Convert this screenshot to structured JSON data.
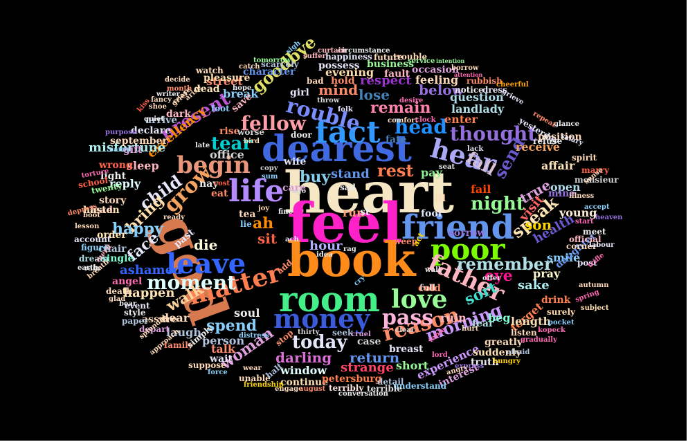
{
  "background": "#000000",
  "words": [
    {
      "text": "heart",
      "color": "#f5e6c4"
    },
    {
      "text": "feel",
      "color": "#ff22c8"
    },
    {
      "text": "book",
      "color": "#ff8c1a"
    },
    {
      "text": "dearest",
      "color": "#4169e1"
    },
    {
      "text": "god",
      "color": "#d77a50"
    },
    {
      "text": "room",
      "color": "#44ee88"
    },
    {
      "text": "friend",
      "color": "#6495ed"
    },
    {
      "text": "poor",
      "color": "#7CFC00"
    },
    {
      "text": "life",
      "color": "#b48cff"
    },
    {
      "text": "fact",
      "color": "#3399ff"
    },
    {
      "text": "leave",
      "color": "#3366ff"
    },
    {
      "text": "money",
      "color": "#3b5bdb"
    },
    {
      "text": "love",
      "color": "#98fb98"
    },
    {
      "text": "matter",
      "color": "#ff7f50"
    },
    {
      "text": "hear",
      "color": "#a9a9f5"
    },
    {
      "text": "father",
      "color": "#ffb6c1"
    },
    {
      "text": "begin",
      "color": "#e9967a"
    },
    {
      "text": "moment",
      "color": "#e0ffff"
    },
    {
      "text": "fellow",
      "color": "#ff9ea8"
    },
    {
      "text": "head",
      "color": "#1e90ff"
    },
    {
      "text": "rouble",
      "color": "#7b8cff"
    },
    {
      "text": "reason",
      "color": "#ff8c69"
    },
    {
      "text": "pass",
      "color": "#ffb3d9"
    },
    {
      "text": "thought",
      "color": "#9370db"
    },
    {
      "text": "night",
      "color": "#98fb98"
    },
    {
      "text": "remember",
      "color": "#b0e0e6"
    },
    {
      "text": "grow",
      "color": "#f4a460"
    },
    {
      "text": "present",
      "color": "#ba55d3"
    },
    {
      "text": "remain",
      "color": "#ff82ab"
    },
    {
      "text": "today",
      "color": "#e6e6fa"
    },
    {
      "text": "speak",
      "color": "#ffe4b5"
    },
    {
      "text": "tear",
      "color": "#00ced1"
    },
    {
      "text": "child",
      "color": "#e6e6fa"
    },
    {
      "text": "goodbye",
      "color": "#e0e066"
    },
    {
      "text": "ah",
      "color": "#ff8c00"
    },
    {
      "text": "sit",
      "color": "#ff6347"
    },
    {
      "text": "die",
      "color": "#ffffe0"
    },
    {
      "text": "send",
      "color": "#6a5acd"
    },
    {
      "text": "walk",
      "color": "#ffd39b"
    },
    {
      "text": "woman",
      "color": "#dda0dd"
    },
    {
      "text": "spend",
      "color": "#87cefa"
    },
    {
      "text": "sort",
      "color": "#40e0d0"
    },
    {
      "text": "eye",
      "color": "#ff1493"
    },
    {
      "text": "fall",
      "color": "#d8bfd8"
    },
    {
      "text": "rest",
      "color": "#ff7f50"
    },
    {
      "text": "buy",
      "color": "#87ceeb"
    },
    {
      "text": "morning",
      "color": "#cc99ff"
    },
    {
      "text": "bring",
      "color": "#ffdead"
    },
    {
      "text": "happy",
      "color": "#87cefa"
    },
    {
      "text": "face",
      "color": "#e6e6fa"
    },
    {
      "text": "happen",
      "color": "#ffe4b5"
    },
    {
      "text": "mind",
      "color": "#ff8c69"
    },
    {
      "text": "lose",
      "color": "#4682b4"
    },
    {
      "text": "below",
      "color": "#9370db"
    },
    {
      "text": "darling",
      "color": "#da70d6"
    },
    {
      "text": "return",
      "color": "#6495ed"
    },
    {
      "text": "person",
      "color": "#b0c4de"
    },
    {
      "text": "sake",
      "color": "#afeeee"
    },
    {
      "text": "forget",
      "color": "#ff7f50"
    },
    {
      "text": "visit",
      "color": "#ff6666"
    },
    {
      "text": "true",
      "color": "#dda0dd"
    },
    {
      "text": "son",
      "color": "#ffd700"
    },
    {
      "text": "pray",
      "color": "#fffacd"
    },
    {
      "text": "health",
      "color": "#6a5acd"
    },
    {
      "text": "enter",
      "color": "#ff7f50"
    },
    {
      "text": "respect",
      "color": "#9932cc"
    },
    {
      "text": "question",
      "color": "#add8e6"
    },
    {
      "text": "landlady",
      "color": "#b0e0e6"
    },
    {
      "text": "receive",
      "color": "#f4a460"
    },
    {
      "text": "excellency",
      "color": "#ff8c00"
    },
    {
      "text": "misfortune",
      "color": "#afeeee"
    },
    {
      "text": "sleep",
      "color": "#ffb6c1"
    },
    {
      "text": "reply",
      "color": "#e0ffff"
    },
    {
      "text": "office",
      "color": "#d3d3d3"
    },
    {
      "text": "care",
      "color": "#dda0dd"
    },
    {
      "text": "stand",
      "color": "#6495ed"
    },
    {
      "text": "pay",
      "color": "#90ee90"
    },
    {
      "text": "hour",
      "color": "#b0b0ff"
    },
    {
      "text": "run",
      "color": "#ffa07a"
    },
    {
      "text": "st",
      "color": "#eeeeee"
    },
    {
      "text": "fool",
      "color": "#e6e6fa"
    },
    {
      "text": "sorrow",
      "color": "#9370db"
    },
    {
      "text": "ill",
      "color": "#ffdab9"
    },
    {
      "text": "fail",
      "color": "#ff4500"
    },
    {
      "text": "open",
      "color": "#add8e6"
    },
    {
      "text": "affair",
      "color": "#ffe4b5"
    },
    {
      "text": "mine",
      "color": "#9370db"
    },
    {
      "text": "young",
      "color": "#ffefd5"
    },
    {
      "text": "smile",
      "color": "#87cefa"
    },
    {
      "text": "drink",
      "color": "#ff7f50"
    },
    {
      "text": "daughter",
      "color": "#6495ed"
    },
    {
      "text": "length",
      "color": "#f5deb3"
    },
    {
      "text": "ruin",
      "color": "#ffb6c1"
    },
    {
      "text": "fear",
      "color": "#b0e0e6"
    },
    {
      "text": "beg",
      "color": "#7fffd4"
    },
    {
      "text": "soul",
      "color": "#eeeeee"
    },
    {
      "text": "laugh",
      "color": "#b0c4de"
    },
    {
      "text": "talk",
      "color": "#ff8c69"
    },
    {
      "text": "case",
      "color": "#d3d3d3"
    },
    {
      "text": "breast",
      "color": "#e6e6fa"
    },
    {
      "text": "short",
      "color": "#98fb98"
    },
    {
      "text": "strange",
      "color": "#ff4466"
    },
    {
      "text": "window",
      "color": "#e0ffff"
    },
    {
      "text": "experience",
      "color": "#cc99ff"
    },
    {
      "text": "greatly",
      "color": "#ffdab9"
    },
    {
      "text": "suddenly",
      "color": "#ffe4b5"
    },
    {
      "text": "interest",
      "color": "#dda0dd"
    },
    {
      "text": "truth",
      "color": "#eeeeee"
    },
    {
      "text": "continue",
      "color": "#ffdead"
    },
    {
      "text": "petersburg",
      "color": "#ff7f50"
    },
    {
      "text": "detail",
      "color": "#b0c4de"
    },
    {
      "text": "understand",
      "color": "#87cefa"
    },
    {
      "text": "terribly",
      "color": "#ffe4e1"
    },
    {
      "text": "terrible",
      "color": "#e0e0e0"
    },
    {
      "text": "evening",
      "color": "#ffdead"
    },
    {
      "text": "possess",
      "color": "#e6e6fa"
    },
    {
      "text": "business",
      "color": "#98fb98"
    },
    {
      "text": "fault",
      "color": "#ffb6c1"
    },
    {
      "text": "feeling",
      "color": "#ffdab9"
    },
    {
      "text": "hold",
      "color": "#ff8c69"
    },
    {
      "text": "occasion",
      "color": "#dda0dd"
    },
    {
      "text": "street",
      "color": "#ff8c69"
    },
    {
      "text": "break",
      "color": "#87cefa"
    },
    {
      "text": "dear",
      "color": "#ffdab9"
    },
    {
      "text": "past",
      "color": "#e6e6fa"
    },
    {
      "text": "angel",
      "color": "#ff69b4"
    },
    {
      "text": "single",
      "color": "#7fffd4"
    },
    {
      "text": "chair",
      "color": "#b0c4de"
    },
    {
      "text": "order",
      "color": "#ffe4b5"
    },
    {
      "text": "story",
      "color": "#ffdab9"
    },
    {
      "text": "lead",
      "color": "#ffb6c1"
    },
    {
      "text": "light",
      "color": "#eeeeee"
    },
    {
      "text": "wrong",
      "color": "#ff6347"
    },
    {
      "text": "gift",
      "color": "#dda0dd"
    },
    {
      "text": "declare",
      "color": "#e6e6fa"
    },
    {
      "text": "september",
      "color": "#ffdab9"
    },
    {
      "text": "arrive",
      "color": "#b0c4de"
    },
    {
      "text": "dark",
      "color": "#ffb6c1"
    },
    {
      "text": "foot",
      "color": "#87cefa"
    },
    {
      "text": "dead",
      "color": "#ffe4b5"
    },
    {
      "text": "save",
      "color": "#ffb6c1"
    },
    {
      "text": "door",
      "color": "#eeeeee"
    },
    {
      "text": "wife",
      "color": "#e6e6fa"
    },
    {
      "text": "rise",
      "color": "#ff8c69"
    },
    {
      "text": "worse",
      "color": "#d3d3d3"
    },
    {
      "text": "girl",
      "color": "#e6e6fa"
    },
    {
      "text": "bad",
      "color": "#ffdab9"
    },
    {
      "text": "character",
      "color": "#6495ed"
    },
    {
      "text": "scarcely",
      "color": "#b0c4de"
    },
    {
      "text": "pleasure",
      "color": "#ffdead"
    },
    {
      "text": "watch",
      "color": "#ffdab9"
    },
    {
      "text": "notice",
      "color": "#eeeeee"
    },
    {
      "text": "dress",
      "color": "#e6e6fa"
    },
    {
      "text": "rubbish",
      "color": "#ff8c69"
    },
    {
      "text": "fate",
      "color": "#4682b4"
    },
    {
      "text": "sad",
      "color": "#eeeeee"
    },
    {
      "text": "tea",
      "color": "#ffdab9"
    },
    {
      "text": "nay",
      "color": "#eeeeee"
    },
    {
      "text": "eat",
      "color": "#ff8c69"
    },
    {
      "text": "lie",
      "color": "#87cefa"
    },
    {
      "text": "hasten",
      "color": "#ffe4b5"
    },
    {
      "text": "twenty",
      "color": "#98fb98"
    },
    {
      "text": "school",
      "color": "#ff6347"
    },
    {
      "text": "account",
      "color": "#e6e6fa"
    },
    {
      "text": "figure",
      "color": "#87cefa"
    },
    {
      "text": "dream",
      "color": "#b0e0e6"
    },
    {
      "text": "death",
      "color": "#ffdab9"
    },
    {
      "text": "assure",
      "color": "#ffdab9"
    },
    {
      "text": "style",
      "color": "#eeeeee"
    },
    {
      "text": "paper",
      "color": "#b0c4de"
    },
    {
      "text": "depart",
      "color": "#dda0dd"
    },
    {
      "text": "family",
      "color": "#ff8c69"
    },
    {
      "text": "simply",
      "color": "#eeeeee"
    },
    {
      "text": "suppose",
      "color": "#ffdab9"
    },
    {
      "text": "wait",
      "color": "#e6e6fa"
    },
    {
      "text": "unable",
      "color": "#ffdab9"
    },
    {
      "text": "half",
      "color": "#b0c4de"
    },
    {
      "text": "stop",
      "color": "#ff8c69"
    },
    {
      "text": "official",
      "color": "#ffb6c1"
    },
    {
      "text": "corner",
      "color": "#ffdab9"
    },
    {
      "text": "post",
      "color": "#e6e6fa"
    },
    {
      "text": "meet",
      "color": "#eeeeee"
    },
    {
      "text": "surely",
      "color": "#ffdead"
    },
    {
      "text": "listen",
      "color": "#ffdab9"
    },
    {
      "text": "hungry",
      "color": "#ffd700"
    },
    {
      "text": "afraid",
      "color": "#b0c4de"
    },
    {
      "text": "position",
      "color": "#ffdab9"
    },
    {
      "text": "yesterday",
      "color": "#e6e6fa"
    },
    {
      "text": "refuse",
      "color": "#eeeeee"
    },
    {
      "text": "spirit",
      "color": "#ffdab9"
    },
    {
      "text": "marry",
      "color": "#ff6347"
    },
    {
      "text": "monsieur",
      "color": "#d3d3d3"
    },
    {
      "text": "illness",
      "color": "#ffdab9"
    },
    {
      "text": "accept",
      "color": "#87cefa"
    },
    {
      "text": "heaven",
      "color": "#9370db"
    },
    {
      "text": "start",
      "color": "#ff69b4"
    },
    {
      "text": "labour",
      "color": "#e6e6fa"
    },
    {
      "text": "autumn",
      "color": "#ffdab9"
    },
    {
      "text": "spring",
      "color": "#ff69b4"
    },
    {
      "text": "subject",
      "color": "#ffdead"
    },
    {
      "text": "pocket",
      "color": "#87cefa"
    },
    {
      "text": "kopeck",
      "color": "#ff69b4"
    },
    {
      "text": "gradually",
      "color": "#ff69b4"
    },
    {
      "text": "trouble",
      "color": "#ffdab9"
    },
    {
      "text": "happiness",
      "color": "#e6e6fa"
    },
    {
      "text": "circumstance",
      "color": "#eeeeee"
    },
    {
      "text": "future",
      "color": "#ffdab9"
    },
    {
      "text": "tomorrow",
      "color": "#98fb98"
    },
    {
      "text": "suffer",
      "color": "#ffb6c1"
    },
    {
      "text": "service",
      "color": "#98fb98"
    },
    {
      "text": "intention",
      "color": "#98fb98"
    },
    {
      "text": "borrow",
      "color": "#ffdab9"
    },
    {
      "text": "attention",
      "color": "#ff69b4"
    },
    {
      "text": "cheerful",
      "color": "#ffa500"
    },
    {
      "text": "grieve",
      "color": "#e6e6fa"
    },
    {
      "text": "glance",
      "color": "#eeeeee"
    },
    {
      "text": "salary",
      "color": "#e6e6fa"
    },
    {
      "text": "conversation",
      "color": "#eeeeee"
    },
    {
      "text": "engage",
      "color": "#ffdab9"
    },
    {
      "text": "august",
      "color": "#ff8c69"
    },
    {
      "text": "friendship",
      "color": "#ffd700"
    },
    {
      "text": "force",
      "color": "#87cefa"
    },
    {
      "text": "express",
      "color": "#9370db"
    },
    {
      "text": "angry",
      "color": "#ffdab9"
    },
    {
      "text": "splendid",
      "color": "#ffdab9"
    },
    {
      "text": "approach",
      "color": "#ffdab9"
    },
    {
      "text": "bear",
      "color": "#eeeeee"
    },
    {
      "text": "event",
      "color": "#e6e6fa"
    },
    {
      "text": "glad",
      "color": "#ffdab9"
    },
    {
      "text": "breath",
      "color": "#ffdab9"
    },
    {
      "text": "earth",
      "color": "#eeeeee"
    },
    {
      "text": "rain",
      "color": "#eeeeee"
    },
    {
      "text": "merit",
      "color": "#ffb6c1"
    },
    {
      "text": "lesson",
      "color": "#ffdab9"
    },
    {
      "text": "depress",
      "color": "#ff8c69"
    },
    {
      "text": "torture",
      "color": "#ff69b4"
    },
    {
      "text": "purpose",
      "color": "#9370db"
    },
    {
      "text": "quiet",
      "color": "#eeeeee"
    },
    {
      "text": "fancy",
      "color": "#ffdab9"
    },
    {
      "text": "writer",
      "color": "#eeeeee"
    },
    {
      "text": "decide",
      "color": "#ffdab9"
    },
    {
      "text": "month",
      "color": "#ff8c69"
    },
    {
      "text": "shoe",
      "color": "#ffdab9"
    },
    {
      "text": "kiss",
      "color": "#ff6347"
    },
    {
      "text": "arise",
      "color": "#ffdab9"
    },
    {
      "text": "grief",
      "color": "#ffdab9"
    },
    {
      "text": "cease",
      "color": "#ffdab9"
    },
    {
      "text": "hope",
      "color": "#eeeeee"
    },
    {
      "text": "catch",
      "color": "#ffdab9"
    },
    {
      "text": "sigh",
      "color": "#87cefa"
    },
    {
      "text": "curtain",
      "color": "#ffb6c1"
    },
    {
      "text": "throw",
      "color": "#d3d3d3"
    },
    {
      "text": "desire",
      "color": "#ff69b4"
    },
    {
      "text": "comfort",
      "color": "#ffdab9"
    },
    {
      "text": "clock",
      "color": "#ff69b4"
    },
    {
      "text": "repeat",
      "color": "#ff8c69"
    },
    {
      "text": "lack",
      "color": "#e6e6fa"
    },
    {
      "text": "boot",
      "color": "#ffdab9"
    },
    {
      "text": "carry",
      "color": "#87cefa"
    },
    {
      "text": "sense",
      "color": "#ffdab9"
    },
    {
      "text": "trifle",
      "color": "#ff69b4"
    },
    {
      "text": "offer",
      "color": "#eeeeee"
    },
    {
      "text": "wall",
      "color": "#eeeeee"
    },
    {
      "text": "weep",
      "color": "#ff8c69"
    },
    {
      "text": "act",
      "color": "#ffd700"
    },
    {
      "text": "full",
      "color": "#eeeeee"
    },
    {
      "text": "cold",
      "color": "#ff8c69"
    },
    {
      "text": "cry",
      "color": "#87cefa"
    },
    {
      "text": "seek",
      "color": "#b0c4de"
    },
    {
      "text": "cruel",
      "color": "#dda0dd"
    },
    {
      "text": "clear",
      "color": "#d3d3d3"
    },
    {
      "text": "lord",
      "color": "#ff69b4"
    },
    {
      "text": "hurt",
      "color": "#ffdab9"
    },
    {
      "text": "table",
      "color": "#ff69b4"
    },
    {
      "text": "folk",
      "color": "#e6e6fa"
    },
    {
      "text": "thirty",
      "color": "#d3d3d3"
    },
    {
      "text": "distress",
      "color": "#87cefa"
    },
    {
      "text": "wear",
      "color": "#ffdab9"
    },
    {
      "text": "add",
      "color": "#ff8c69"
    },
    {
      "text": "rag",
      "color": "#eeeeee"
    },
    {
      "text": "idea",
      "color": "#eeeeee"
    },
    {
      "text": "ach",
      "color": "#e6e6fa"
    },
    {
      "text": "ago",
      "color": "#d3d3d3"
    },
    {
      "text": "seat",
      "color": "#eeeeee"
    },
    {
      "text": "copy",
      "color": "#d3d3d3"
    },
    {
      "text": "sum",
      "color": "#87cefa"
    },
    {
      "text": "joy",
      "color": "#ffdab9"
    },
    {
      "text": "fine",
      "color": "#eeeeee"
    },
    {
      "text": "cost",
      "color": "#ff6347"
    },
    {
      "text": "late",
      "color": "#eeeeee"
    },
    {
      "text": "bird",
      "color": "#ffdab9"
    },
    {
      "text": "ready",
      "color": "#ffdab9"
    },
    {
      "text": "ashamed",
      "color": "#3366ff"
    }
  ]
}
